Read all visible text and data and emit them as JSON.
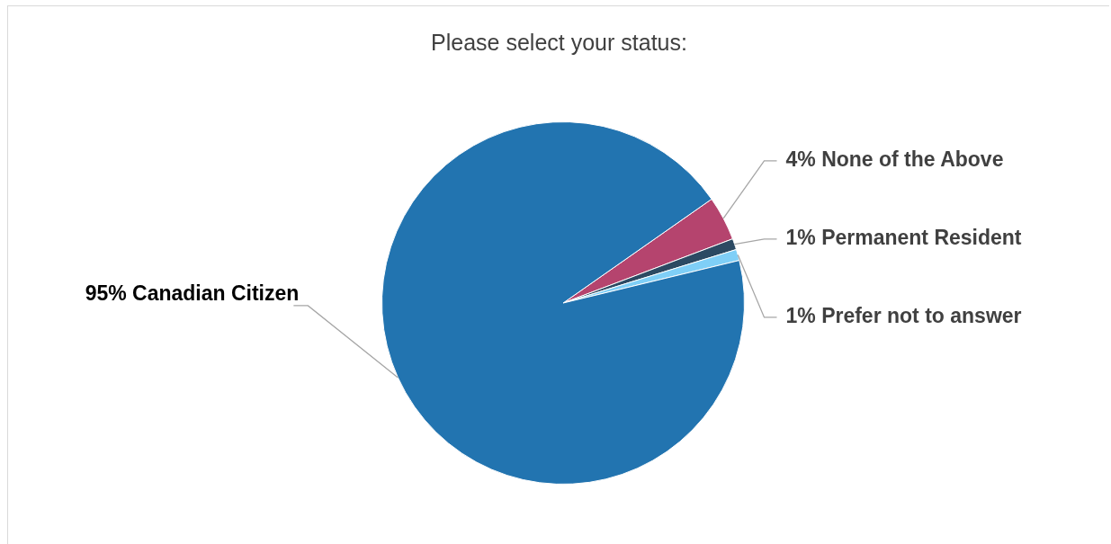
{
  "chart_data": {
    "type": "pie",
    "title": "Please select your status:",
    "categories": [
      "None of the Above",
      "Permanent Resident",
      "Prefer not to answer",
      "Canadian Citizen"
    ],
    "values": [
      4,
      1,
      1,
      95
    ],
    "value_labels": [
      "4%",
      "1%",
      "1%",
      "95%"
    ],
    "colors": [
      "#b5446e",
      "#2c4a63",
      "#7fcff7",
      "#2274b0"
    ]
  }
}
